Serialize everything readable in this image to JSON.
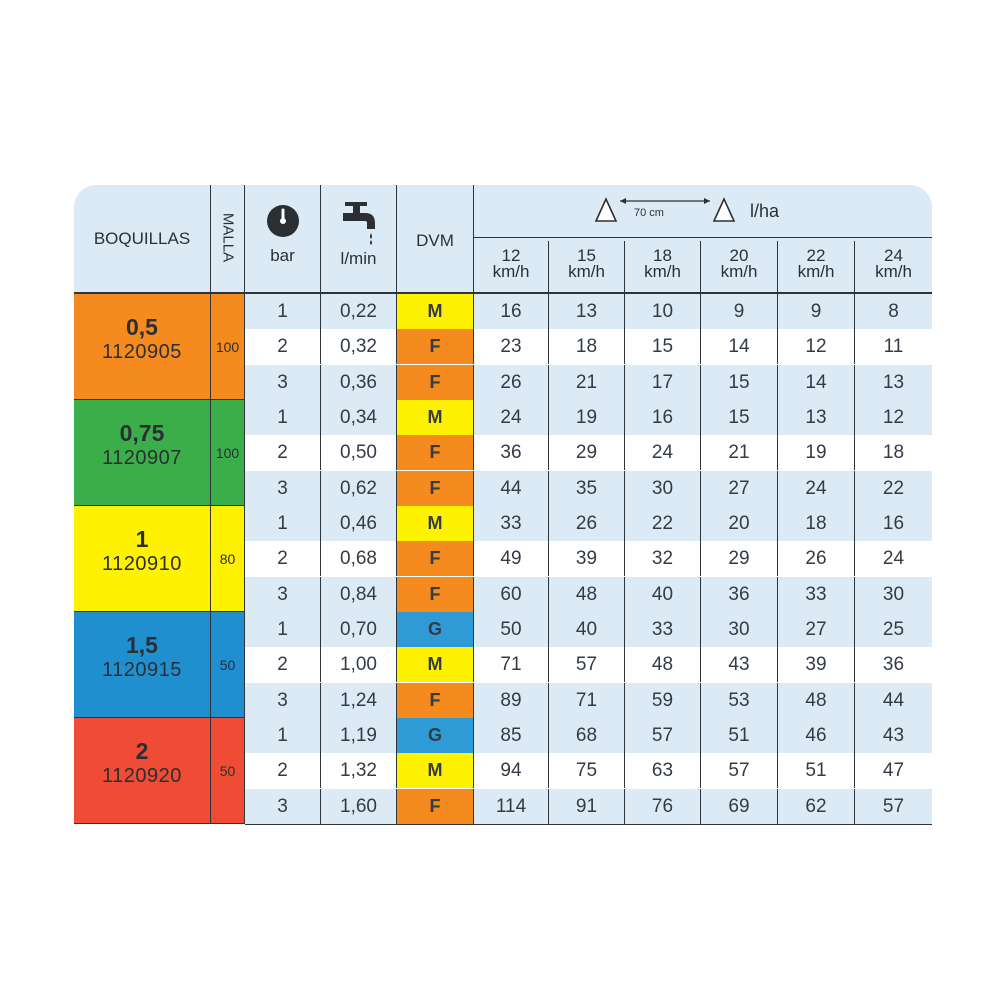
{
  "header": {
    "boquillas": "BOQUILLAS",
    "malla": "MALLA",
    "bar": "bar",
    "lmin": "l/min",
    "dvm": "DVM",
    "spacing": "70 cm",
    "lha": "l/ha",
    "speeds": [
      {
        "value": "12",
        "unit": "km/h"
      },
      {
        "value": "15",
        "unit": "km/h"
      },
      {
        "value": "18",
        "unit": "km/h"
      },
      {
        "value": "20",
        "unit": "km/h"
      },
      {
        "value": "22",
        "unit": "km/h"
      },
      {
        "value": "24",
        "unit": "km/h"
      }
    ]
  },
  "colors": {
    "orange": "#f58a1f",
    "green": "#3bae49",
    "yellow": "#fff200",
    "blue": "#1f8fcf",
    "red": "#ef4b35",
    "row_light": "#dceaf5",
    "dvm_M": "#fff200",
    "dvm_F": "#f58a1f",
    "dvm_G": "#2e9bd6"
  },
  "nozzles": [
    {
      "size": "0,5",
      "code": "1120905",
      "mesh": "100",
      "color": "orange",
      "rows": [
        {
          "bar": "1",
          "lmin": "0,22",
          "dvm": "M",
          "lha": [
            "16",
            "13",
            "10",
            "9",
            "9",
            "8"
          ]
        },
        {
          "bar": "2",
          "lmin": "0,32",
          "dvm": "F",
          "lha": [
            "23",
            "18",
            "15",
            "14",
            "12",
            "11"
          ]
        },
        {
          "bar": "3",
          "lmin": "0,36",
          "dvm": "F",
          "lha": [
            "26",
            "21",
            "17",
            "15",
            "14",
            "13"
          ]
        }
      ]
    },
    {
      "size": "0,75",
      "code": "1120907",
      "mesh": "100",
      "color": "green",
      "rows": [
        {
          "bar": "1",
          "lmin": "0,34",
          "dvm": "M",
          "lha": [
            "24",
            "19",
            "16",
            "15",
            "13",
            "12"
          ]
        },
        {
          "bar": "2",
          "lmin": "0,50",
          "dvm": "F",
          "lha": [
            "36",
            "29",
            "24",
            "21",
            "19",
            "18"
          ]
        },
        {
          "bar": "3",
          "lmin": "0,62",
          "dvm": "F",
          "lha": [
            "44",
            "35",
            "30",
            "27",
            "24",
            "22"
          ]
        }
      ]
    },
    {
      "size": "1",
      "code": "1120910",
      "mesh": "80",
      "color": "yellow",
      "rows": [
        {
          "bar": "1",
          "lmin": "0,46",
          "dvm": "M",
          "lha": [
            "33",
            "26",
            "22",
            "20",
            "18",
            "16"
          ]
        },
        {
          "bar": "2",
          "lmin": "0,68",
          "dvm": "F",
          "lha": [
            "49",
            "39",
            "32",
            "29",
            "26",
            "24"
          ]
        },
        {
          "bar": "3",
          "lmin": "0,84",
          "dvm": "F",
          "lha": [
            "60",
            "48",
            "40",
            "36",
            "33",
            "30"
          ]
        }
      ]
    },
    {
      "size": "1,5",
      "code": "1120915",
      "mesh": "50",
      "color": "blue",
      "rows": [
        {
          "bar": "1",
          "lmin": "0,70",
          "dvm": "G",
          "lha": [
            "50",
            "40",
            "33",
            "30",
            "27",
            "25"
          ]
        },
        {
          "bar": "2",
          "lmin": "1,00",
          "dvm": "M",
          "lha": [
            "71",
            "57",
            "48",
            "43",
            "39",
            "36"
          ]
        },
        {
          "bar": "3",
          "lmin": "1,24",
          "dvm": "F",
          "lha": [
            "89",
            "71",
            "59",
            "53",
            "48",
            "44"
          ]
        }
      ]
    },
    {
      "size": "2",
      "code": "1120920",
      "mesh": "50",
      "color": "red",
      "rows": [
        {
          "bar": "1",
          "lmin": "1,19",
          "dvm": "G",
          "lha": [
            "85",
            "68",
            "57",
            "51",
            "46",
            "43"
          ]
        },
        {
          "bar": "2",
          "lmin": "1,32",
          "dvm": "M",
          "lha": [
            "94",
            "75",
            "63",
            "57",
            "51",
            "47"
          ]
        },
        {
          "bar": "3",
          "lmin": "1,60",
          "dvm": "F",
          "lha": [
            "114",
            "91",
            "76",
            "69",
            "62",
            "57"
          ]
        }
      ]
    }
  ]
}
